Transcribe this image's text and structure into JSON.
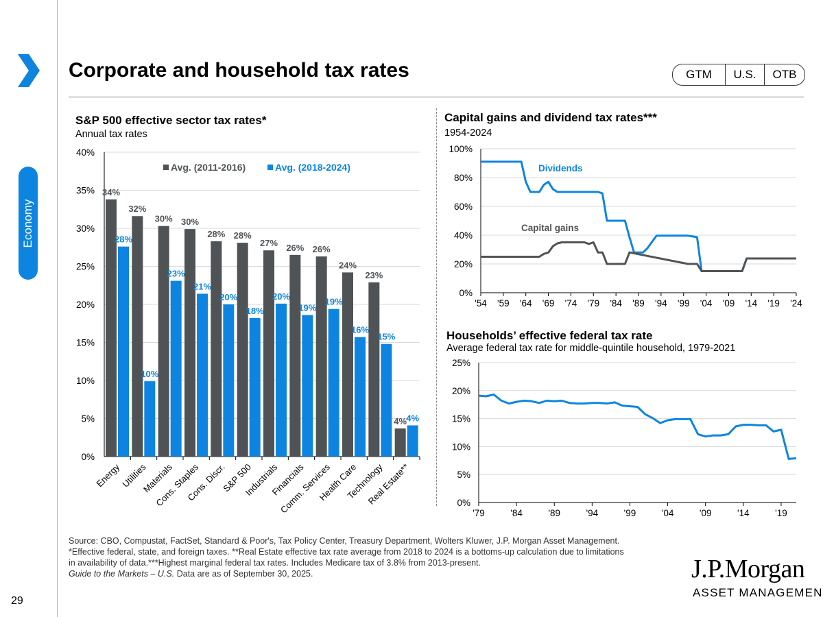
{
  "header": {
    "title": "Corporate and household tax rates",
    "badges": [
      "GTM",
      "U.S.",
      "OTB"
    ],
    "section": "Economy",
    "page_number": "29"
  },
  "footer": {
    "source_lines": [
      "Source: CBO, Compustat, FactSet, Standard & Poor's, Tax Policy Center, Treasury Department, Wolters Kluwer, J.P. Morgan Asset Management.",
      "*Effective federal, state, and foreign taxes. **Real Estate effective tax rate average from 2018 to 2024 is a bottoms-up calculation due to limitations",
      "in availability of data.***Highest marginal federal tax rates. Includes Medicare tax of 3.8% from 2013-present."
    ],
    "guide_italic": "Guide to the Markets – U.S.",
    "guide_rest": " Data are as of September 30, 2025.",
    "logo_line1": "J.P.Morgan",
    "logo_line2": "ASSET MANAGEMENT"
  },
  "colors": {
    "accent": "#0d85e0",
    "dark_bar": "#505356",
    "grid": "#d9d9d9"
  },
  "chart_data": [
    {
      "id": "sector",
      "type": "bar",
      "title": "S&P 500 effective sector tax rates*",
      "subtitle": "Annual tax rates",
      "categories": [
        "Energy",
        "Utilities",
        "Materials",
        "Cons. Staples",
        "Cons. Discr.",
        "S&P 500",
        "Industrials",
        "Financials",
        "Comm. Services",
        "Health Care",
        "Technology",
        "Real Estate**"
      ],
      "series": [
        {
          "name": "Avg. (2011-2016)",
          "color": "#505356",
          "values": [
            33.8,
            31.6,
            30.3,
            29.9,
            28.3,
            28.1,
            27.1,
            26.5,
            26.3,
            24.2,
            22.9,
            3.7
          ],
          "labels": [
            "34%",
            "32%",
            "30%",
            "30%",
            "28%",
            "28%",
            "27%",
            "26%",
            "26%",
            "24%",
            "23%",
            "4%"
          ]
        },
        {
          "name": "Avg. (2018-2024)",
          "color": "#0d85e0",
          "values": [
            27.6,
            9.9,
            23.1,
            21.4,
            20.0,
            18.2,
            20.1,
            18.6,
            19.4,
            15.7,
            14.8,
            4.1
          ],
          "labels": [
            "28%",
            "10%",
            "23%",
            "21%",
            "20%",
            "18%",
            "20%",
            "19%",
            "19%",
            "16%",
            "15%",
            "4%"
          ]
        }
      ],
      "ylim": [
        0,
        40
      ],
      "yticks": [
        "0%",
        "5%",
        "10%",
        "15%",
        "20%",
        "25%",
        "30%",
        "35%",
        "40%"
      ],
      "legend": "top"
    },
    {
      "id": "capgains",
      "type": "line",
      "title": "Capital gains and dividend tax rates***",
      "subtitle": "1954-2024",
      "xlim": [
        1954,
        2024
      ],
      "ylim": [
        0,
        100
      ],
      "xticks": [
        "'54",
        "'59",
        "'64",
        "'69",
        "'74",
        "'79",
        "'84",
        "'89",
        "'94",
        "'99",
        "'04",
        "'09",
        "'14",
        "'19",
        "'24"
      ],
      "yticks": [
        "0%",
        "20%",
        "40%",
        "60%",
        "80%",
        "100%"
      ],
      "series": [
        {
          "name": "Dividends",
          "color": "#0d85e0",
          "x": [
            1954,
            1963,
            1964,
            1965,
            1967,
            1968,
            1969,
            1970,
            1971,
            1980,
            1981,
            1982,
            1986,
            1987,
            1988,
            1990,
            1991,
            1993,
            2000,
            2001,
            2002,
            2003,
            2012,
            2013,
            2024
          ],
          "y": [
            91,
            91,
            77,
            70,
            70,
            75,
            77,
            72,
            70,
            70,
            69,
            50,
            50,
            38.5,
            28,
            28,
            31,
            39.6,
            39.6,
            39.1,
            38.6,
            15,
            15,
            23.8,
            23.8
          ]
        },
        {
          "name": "Capital gains",
          "color": "#505356",
          "x": [
            1954,
            1967,
            1968,
            1969,
            1970,
            1971,
            1972,
            1977,
            1978,
            1979,
            1980,
            1981,
            1982,
            1986,
            1987,
            2000,
            2001,
            2002,
            2003,
            2012,
            2013,
            2024
          ],
          "y": [
            25,
            25,
            27,
            27.9,
            32.3,
            34.3,
            35,
            35,
            33.9,
            35,
            28,
            28,
            20,
            20,
            28,
            20,
            20,
            20,
            15,
            15,
            23.8,
            23.8
          ]
        }
      ],
      "labels": [
        "Dividends",
        "Capital gains"
      ]
    },
    {
      "id": "household",
      "type": "line",
      "title": "Households’ effective federal tax rate",
      "subtitle": "Average federal tax rate for middle-quintile household, 1979-2021",
      "xlim": [
        1979,
        2021
      ],
      "ylim": [
        0,
        25
      ],
      "xticks": [
        "'79",
        "'84",
        "'89",
        "'94",
        "'99",
        "'04",
        "'09",
        "'14",
        "'19"
      ],
      "yticks": [
        "0%",
        "5%",
        "10%",
        "15%",
        "20%",
        "25%"
      ],
      "series": [
        {
          "name": "Middle-quintile household",
          "color": "#0d85e0",
          "x": [
            1979,
            1980,
            1981,
            1982,
            1983,
            1984,
            1985,
            1986,
            1987,
            1988,
            1989,
            1990,
            1991,
            1992,
            1993,
            1994,
            1995,
            1996,
            1997,
            1998,
            1999,
            2000,
            2001,
            2002,
            2003,
            2004,
            2005,
            2006,
            2007,
            2008,
            2009,
            2010,
            2011,
            2012,
            2013,
            2014,
            2015,
            2016,
            2017,
            2018,
            2019,
            2020,
            2021
          ],
          "y": [
            19.1,
            19.0,
            19.3,
            18.2,
            17.7,
            18.0,
            18.2,
            18.1,
            17.8,
            18.2,
            18.1,
            18.2,
            17.8,
            17.7,
            17.7,
            17.8,
            17.8,
            17.7,
            17.9,
            17.3,
            17.2,
            17.1,
            15.8,
            15.1,
            14.2,
            14.7,
            14.9,
            14.9,
            14.9,
            12.2,
            11.8,
            12.0,
            12.0,
            12.2,
            13.6,
            13.9,
            13.9,
            13.8,
            13.8,
            12.7,
            13.0,
            7.8,
            7.9
          ]
        }
      ]
    }
  ]
}
